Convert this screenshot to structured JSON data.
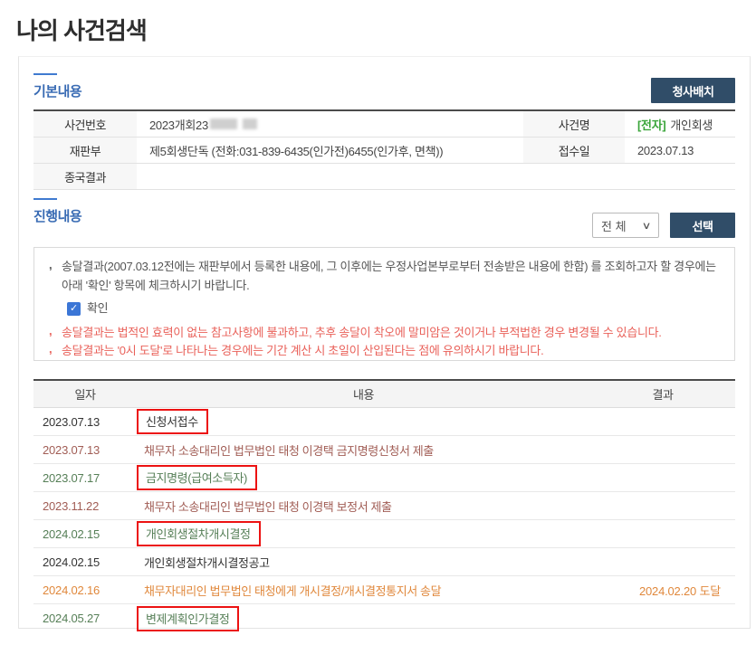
{
  "page": {
    "title": "나의 사건검색"
  },
  "colors": {
    "plain": "#333333",
    "brown": "#a15d55",
    "green": "#567f57",
    "orange": "#e0883c",
    "accent_bar": "#3f7ad0",
    "accent_text": "#3a6cb4",
    "navy_button": "#304d68",
    "tag_green": "#3aa53a",
    "notice_red": "#e9615a",
    "box_red": "#ec1212"
  },
  "basic": {
    "section_title": "기본내용",
    "building_button_label": "청사배치",
    "case_no_label": "사건번호",
    "case_no_value": "2023개회23",
    "case_name_label": "사건명",
    "case_name_tag": "[전자]",
    "case_name_value": "개인회생",
    "court_label": "재판부",
    "court_value": "제5회생단독 (전화:031-839-6435(인가전)6455(인가후, 면책))",
    "receipt_label": "접수일",
    "receipt_value": "2023.07.13",
    "final_label": "종국결과",
    "final_value": ""
  },
  "progress": {
    "section_title": "진행내용",
    "filter_value": "전 체",
    "select_button_label": "선택",
    "notices": {
      "bullet": ",",
      "line1": "송달결과(2007.03.12전에는 재판부에서 등록한 내용에, 그 이후에는 우정사업본부로부터 전송받은 내용에 한함) 를 조회하고자 할 경우에는 아래 '확인' 항목에 체크하시기 바랍니다.",
      "checkbox_label": "확인",
      "checkbox_checked": true,
      "line2": "송달결과는 법적인 효력이 없는 참고사항에 불과하고, 추후 송달이 착오에 말미암은 것이거나 부적법한 경우 변경될 수 있습니다.",
      "line3": "송달결과는 '0시 도달'로 나타나는 경우에는 기간 계산 시 초일이 산입된다는 점에 유의하시기 바랍니다."
    },
    "table": {
      "headers": [
        "일자",
        "내용",
        "결과"
      ],
      "rows": [
        {
          "date": "2023.07.13",
          "content": "신청서접수",
          "result": "",
          "tone": "plain",
          "boxed": true
        },
        {
          "date": "2023.07.13",
          "content": "채무자 소송대리인 법무법인 태청 이경택 금지명령신청서 제출",
          "result": "",
          "tone": "brown",
          "boxed": false
        },
        {
          "date": "2023.07.17",
          "content": "금지명령(급여소득자)",
          "result": "",
          "tone": "green",
          "boxed": true
        },
        {
          "date": "2023.11.22",
          "content": "채무자 소송대리인 법무법인 태청 이경택 보정서 제출",
          "result": "",
          "tone": "brown",
          "boxed": false
        },
        {
          "date": "2024.02.15",
          "content": "개인회생절차개시결정",
          "result": "",
          "tone": "green",
          "boxed": true
        },
        {
          "date": "2024.02.15",
          "content": "개인회생절차개시결정공고",
          "result": "",
          "tone": "plain",
          "boxed": false
        },
        {
          "date": "2024.02.16",
          "content": "채무자대리인 법무법인 태청에게 개시결정/개시결정통지서 송달",
          "result": "2024.02.20 도달",
          "tone": "orange",
          "boxed": false
        },
        {
          "date": "2024.05.27",
          "content": "변제계획인가결정",
          "result": "",
          "tone": "green",
          "boxed": true
        }
      ]
    }
  }
}
